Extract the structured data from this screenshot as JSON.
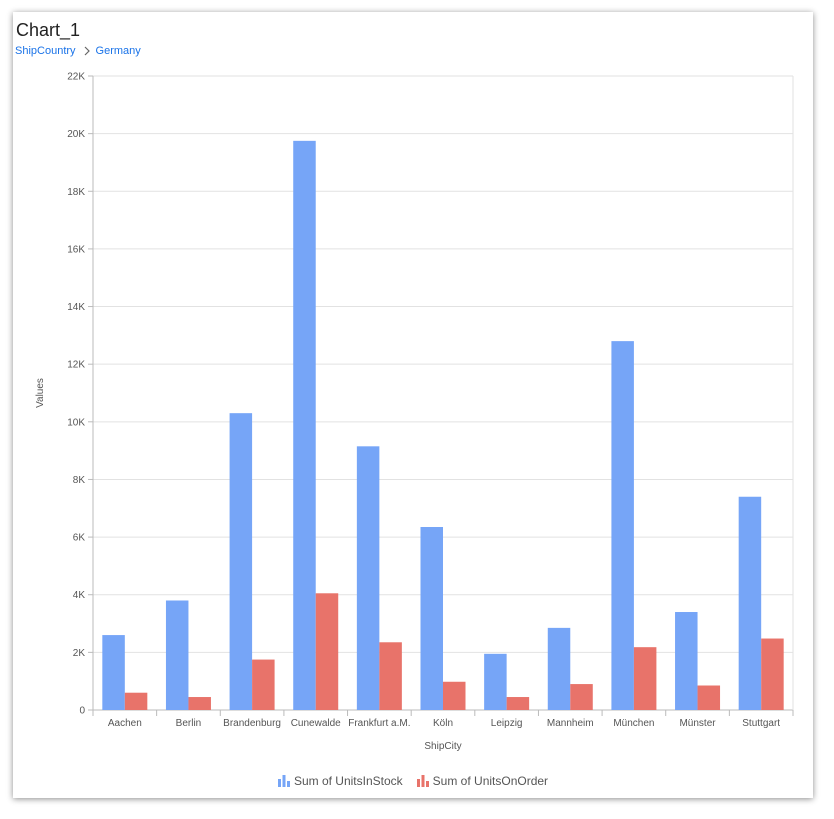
{
  "widget": {
    "title": "Chart_1",
    "breadcrumb": [
      "ShipCountry",
      "Germany"
    ]
  },
  "chart_data": {
    "type": "bar",
    "xlabel": "ShipCity",
    "ylabel": "Values",
    "ylim": [
      0,
      22000
    ],
    "ytick_step": 2000,
    "ytick_labels": [
      "0",
      "2K",
      "4K",
      "6K",
      "8K",
      "10K",
      "12K",
      "14K",
      "16K",
      "18K",
      "20K",
      "22K"
    ],
    "grid": true,
    "legend_position": "bottom",
    "categories": [
      "Aachen",
      "Berlin",
      "Brandenburg",
      "Cunewalde",
      "Frankfurt a.M.",
      "Köln",
      "Leipzig",
      "Mannheim",
      "München",
      "Münster",
      "Stuttgart"
    ],
    "series": [
      {
        "name": "Sum of UnitsInStock",
        "color": "#76a5f7",
        "values": [
          2600,
          3800,
          10300,
          19750,
          9150,
          6350,
          1950,
          2850,
          12800,
          3400,
          7400
        ]
      },
      {
        "name": "Sum of UnitsOnOrder",
        "color": "#e8736a",
        "values": [
          600,
          450,
          1750,
          4050,
          2350,
          980,
          450,
          900,
          2180,
          850,
          2480
        ]
      }
    ]
  },
  "icons": {
    "breadcrumb_separator": "chevron-right-icon",
    "legend_marker": "bar-chart-icon"
  }
}
